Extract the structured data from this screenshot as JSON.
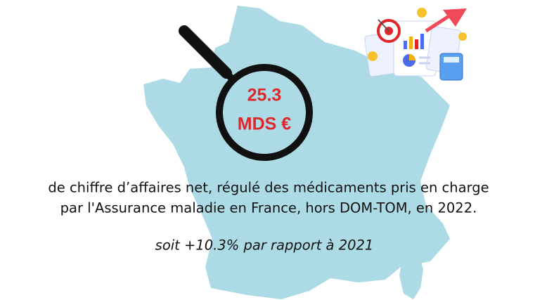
{
  "headline": {
    "value": "25.3",
    "unit": "MDS €"
  },
  "description": [
    "de chiffre d’affaires net, régulé des médicaments pris en charge",
    "par l'Assurance maladie en France, hors DOM-TOM, en 2022."
  ],
  "comparison": "soit +10.3% par rapport à 2021"
}
